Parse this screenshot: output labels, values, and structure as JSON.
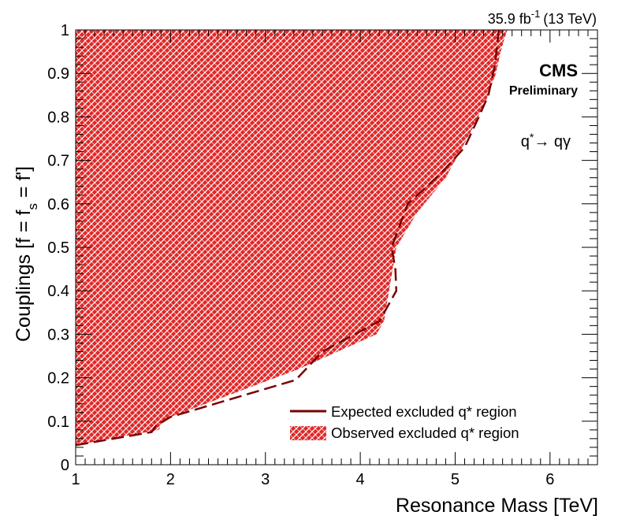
{
  "chart_data": {
    "type": "area",
    "lumi_label": "35.9 fb",
    "lumi_exp": "-1",
    "lumi_energy": "(13 TeV)",
    "experiment": "CMS",
    "status": "Preliminary",
    "process": {
      "base": "q",
      "star": "*",
      "arrow": "→ qγ"
    },
    "xlabel": "Resonance Mass [TeV]",
    "ylabel": {
      "pre": "Couplings [f = f",
      "sub": "s",
      "post": " = f']"
    },
    "xlim": [
      1,
      6.5
    ],
    "ylim": [
      0,
      1
    ],
    "x_ticks": [
      "1",
      "2",
      "3",
      "4",
      "5",
      "6"
    ],
    "y_ticks": [
      "0",
      "0.1",
      "0.2",
      "0.3",
      "0.4",
      "0.5",
      "0.6",
      "0.7",
      "0.8",
      "0.9",
      "1"
    ],
    "series": [
      {
        "name": "Expected excluded q* region",
        "style": "dashed-line",
        "color": "#7a0000",
        "x": [
          1.0,
          1.8,
          1.85,
          2.0,
          3.32,
          3.6,
          4.2,
          4.38,
          4.37,
          4.33,
          4.5,
          4.85,
          5.1,
          5.25,
          5.35,
          5.42,
          5.46
        ],
        "y": [
          0.045,
          0.075,
          0.09,
          0.11,
          0.195,
          0.26,
          0.33,
          0.4,
          0.45,
          0.5,
          0.6,
          0.67,
          0.73,
          0.8,
          0.85,
          0.92,
          1.0
        ]
      },
      {
        "name": "Observed excluded q* region",
        "style": "hatched-fill",
        "color": "#e02828",
        "x": [
          1.0,
          1.88,
          1.9,
          2.0,
          3.35,
          4.17,
          4.25,
          4.38,
          4.6,
          4.9,
          5.05,
          5.2,
          5.33,
          5.43,
          5.48,
          5.52,
          5.55
        ],
        "y": [
          0.045,
          0.08,
          0.095,
          0.11,
          0.22,
          0.3,
          0.33,
          0.5,
          0.58,
          0.66,
          0.72,
          0.78,
          0.84,
          0.9,
          0.95,
          0.98,
          1.0
        ]
      }
    ],
    "legend_position": "bottom-right",
    "grid": false
  }
}
